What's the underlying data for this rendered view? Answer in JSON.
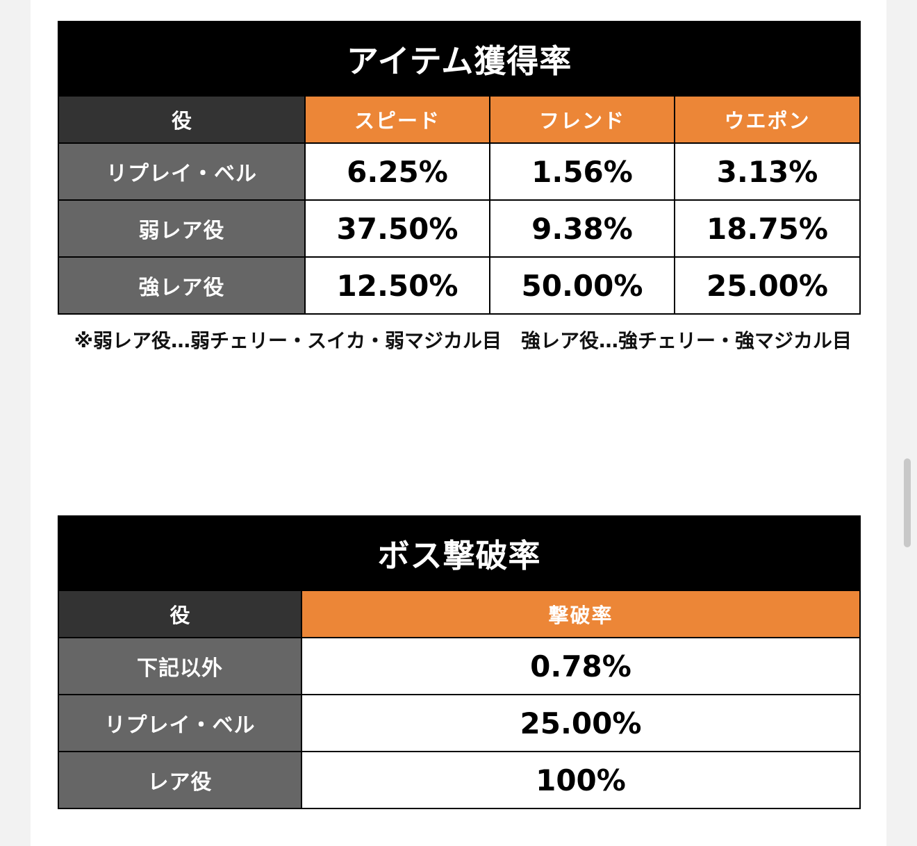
{
  "item_table": {
    "title": "アイテム獲得率",
    "corner": "役",
    "headers": [
      "スピード",
      "フレンド",
      "ウエポン"
    ],
    "rows": [
      {
        "label": "リプレイ・ベル",
        "values": [
          "6.25%",
          "1.56%",
          "3.13%"
        ]
      },
      {
        "label": "弱レア役",
        "values": [
          "37.50%",
          "9.38%",
          "18.75%"
        ]
      },
      {
        "label": "強レア役",
        "values": [
          "12.50%",
          "50.00%",
          "25.00%"
        ]
      }
    ],
    "note": "※弱レア役…弱チェリー・スイカ・弱マジカル目　強レア役…強チェリー・強マジカル目"
  },
  "boss_table": {
    "title": "ボス撃破率",
    "corner": "役",
    "header": "撃破率",
    "rows": [
      {
        "label": "下記以外",
        "value": "0.78%"
      },
      {
        "label": "リプレイ・ベル",
        "value": "25.00%"
      },
      {
        "label": "レア役",
        "value": "100%"
      }
    ]
  },
  "colors": {
    "title_bg": "#000000",
    "corner_bg": "#333333",
    "header_bg": "#ec8637",
    "row_label_bg": "#666666"
  }
}
